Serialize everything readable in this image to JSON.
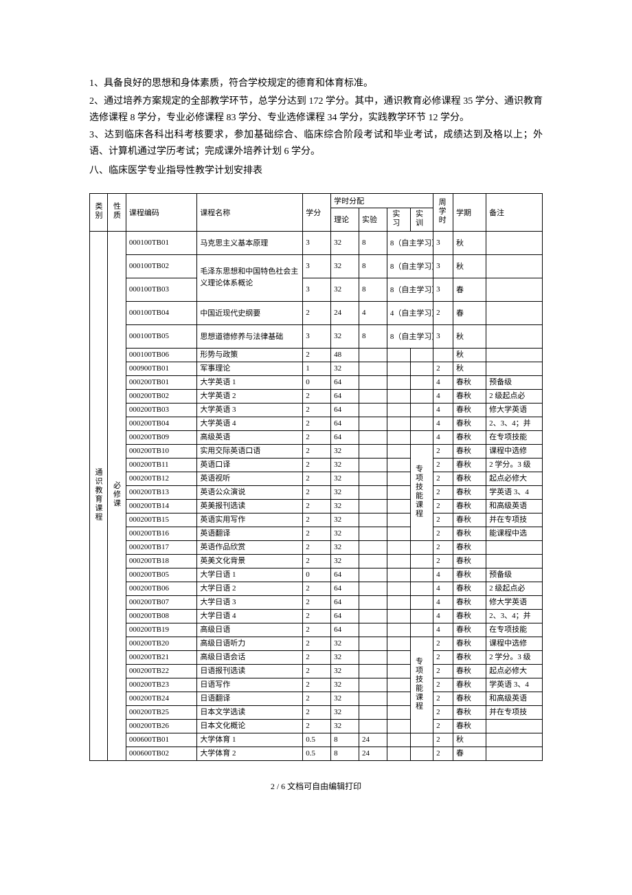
{
  "paragraphs": {
    "p1": "1、具备良好的思想和身体素质，符合学校规定的德育和体育标准。",
    "p2": "2、通过培养方案规定的全部教学环节，总学分达到 172 学分。其中，通识教育必修课程 35 学分、通识教育选修课程 8 学分，专业必修课程 83 学分、专业选修课程 34 学分，实践教学环节 12 学分。",
    "p3": "3、达到临床各科出科考核要求，参加基础综合、临床综合阶段考试和毕业考试，成绩达到及格以上；外语、计算机通过学历考试；完成课外培养计划 6 学分。",
    "s8": "八、临床医学专业指导性教学计划安排表"
  },
  "headers": {
    "category": "类别",
    "nature": "性质",
    "code": "课程编码",
    "name": "课程名称",
    "credit": "学分",
    "hours_alloc": "学时分配",
    "theory": "理论",
    "experiment": "实验",
    "practice": "实习",
    "training": "实训",
    "weekly": "周学时",
    "term": "学期",
    "note": "备注"
  },
  "group": {
    "category": "通识教育课程",
    "nature": "必修课"
  },
  "merged_sx": "8（自主学习）",
  "merged_sx4": "4（自主学习）",
  "brace_en": "专项技能课程",
  "brace_jp": "专项技能课程",
  "rows": [
    {
      "code": "000100TB01",
      "name": "马克思主义基本原理",
      "cr": "3",
      "th": "32",
      "ex": "8",
      "sx": "8（自主学习）",
      "wk": "3",
      "tm": "秋",
      "nt": "",
      "tall": true
    },
    {
      "code": "000100TB02",
      "name": "毛泽东思想和中国特色社",
      "cr": "3",
      "th": "32",
      "ex": "8",
      "sx": "8（自主学习）",
      "wk": "3",
      "tm": "秋",
      "nt": "",
      "tall": true,
      "namerow": 2,
      "name2": "会主义理论体系概论"
    },
    {
      "code": "000100TB03",
      "name": "",
      "cr": "3",
      "th": "32",
      "ex": "8",
      "sx": "8（自主学习）",
      "wk": "3",
      "tm": "春",
      "nt": "",
      "tall": true
    },
    {
      "code": "000100TB04",
      "name": "中国近现代史纲要",
      "cr": "2",
      "th": "24",
      "ex": "4",
      "sx": "4（自主学习）",
      "wk": "2",
      "tm": "春",
      "nt": "",
      "tall": true
    },
    {
      "code": "000100TB05",
      "name": "思想道德修养与法律基础",
      "cr": "3",
      "th": "32",
      "ex": "8",
      "sx": "8（自主学习）",
      "wk": "3",
      "tm": "秋",
      "nt": "",
      "tall": true
    },
    {
      "code": "000100TB06",
      "name": "形势与政策",
      "cr": "2",
      "th": "48",
      "ex": "",
      "pr": "",
      "tr": "",
      "wk": "",
      "tm": "秋",
      "nt": ""
    },
    {
      "code": "000900TB01",
      "name": "军事理论",
      "cr": "1",
      "th": "32",
      "ex": "",
      "pr": "",
      "tr": "",
      "wk": "2",
      "tm": "秋",
      "nt": ""
    },
    {
      "code": "000200TB01",
      "name": "大学英语 1",
      "cr": "0",
      "th": "64",
      "ex": "",
      "pr": "",
      "tr": "",
      "wk": "4",
      "tm": "春秋",
      "nt": "预备级"
    },
    {
      "code": "000200TB02",
      "name": "大学英语 2",
      "cr": "2",
      "th": "64",
      "ex": "",
      "pr": "",
      "tr": "",
      "wk": "4",
      "tm": "春秋",
      "nt": "2 级起点必"
    },
    {
      "code": "000200TB03",
      "name": "大学英语 3",
      "cr": "2",
      "th": "64",
      "ex": "",
      "pr": "",
      "tr": "",
      "wk": "4",
      "tm": "春秋",
      "nt": "修大学英语"
    },
    {
      "code": "000200TB04",
      "name": "大学英语 4",
      "cr": "2",
      "th": "64",
      "ex": "",
      "pr": "",
      "tr": "",
      "wk": "4",
      "tm": "春秋",
      "nt": "2、3、4；并"
    },
    {
      "code": "000200TB09",
      "name": "高级英语",
      "cr": "2",
      "th": "64",
      "ex": "",
      "pr": "",
      "tr": "",
      "wk": "4",
      "tm": "春秋",
      "nt": "在专项技能"
    },
    {
      "code": "000200TB10",
      "name": "实用交际英语口语",
      "cr": "2",
      "th": "32",
      "ex": "",
      "pr": "",
      "tr": "",
      "wk": "2",
      "tm": "春秋",
      "nt": "课程中选修",
      "trspan": 7,
      "trtext": "专项技能课程"
    },
    {
      "code": "000200TB11",
      "name": "英语口译",
      "cr": "2",
      "th": "32",
      "ex": "",
      "pr": "",
      "wk": "2",
      "tm": "春秋",
      "nt": "2 学分。3 级"
    },
    {
      "code": "000200TB12",
      "name": "英语视听",
      "cr": "2",
      "th": "32",
      "ex": "",
      "pr": "",
      "wk": "2",
      "tm": "春秋",
      "nt": "起点必修大"
    },
    {
      "code": "000200TB13",
      "name": "英语公众演说",
      "cr": "2",
      "th": "32",
      "ex": "",
      "pr": "",
      "wk": "2",
      "tm": "春秋",
      "nt": "学英语 3、4"
    },
    {
      "code": "000200TB14",
      "name": "英美报刊选读",
      "cr": "2",
      "th": "32",
      "ex": "",
      "pr": "",
      "wk": "2",
      "tm": "春秋",
      "nt": "和高级英语"
    },
    {
      "code": "000200TB15",
      "name": "英语实用写作",
      "cr": "2",
      "th": "32",
      "ex": "",
      "pr": "",
      "wk": "2",
      "tm": "春秋",
      "nt": "并在专项技"
    },
    {
      "code": "000200TB16",
      "name": "英语翻译",
      "cr": "2",
      "th": "32",
      "ex": "",
      "pr": "",
      "wk": "2",
      "tm": "春秋",
      "nt": "能课程中选"
    },
    {
      "code": "000200TB17",
      "name": "英语作品欣赏",
      "cr": "2",
      "th": "32",
      "ex": "",
      "pr": "",
      "tr": "",
      "wk": "2",
      "tm": "春秋",
      "nt": ""
    },
    {
      "code": "000200TB18",
      "name": "英美文化背景",
      "cr": "2",
      "th": "32",
      "ex": "",
      "pr": "",
      "tr": "",
      "wk": "2",
      "tm": "春秋",
      "nt": ""
    },
    {
      "code": "000200TB05",
      "name": "大学日语 1",
      "cr": "0",
      "th": "64",
      "ex": "",
      "pr": "",
      "tr": "",
      "wk": "4",
      "tm": "春秋",
      "nt": "预备级"
    },
    {
      "code": "000200TB06",
      "name": "大学日语 2",
      "cr": "2",
      "th": "64",
      "ex": "",
      "pr": "",
      "tr": "",
      "wk": "4",
      "tm": "春秋",
      "nt": "2 级起点必"
    },
    {
      "code": "000200TB07",
      "name": "大学日语 3",
      "cr": "2",
      "th": "64",
      "ex": "",
      "pr": "",
      "tr": "",
      "wk": "4",
      "tm": "春秋",
      "nt": "修大学英语"
    },
    {
      "code": "000200TB08",
      "name": "大学日语 4",
      "cr": "2",
      "th": "64",
      "ex": "",
      "pr": "",
      "tr": "",
      "wk": "4",
      "tm": "春秋",
      "nt": "2、3、4；并"
    },
    {
      "code": "000200TB19",
      "name": "高级日语",
      "cr": "2",
      "th": "64",
      "ex": "",
      "pr": "",
      "tr": "",
      "wk": "4",
      "tm": "春秋",
      "nt": "在专项技能"
    },
    {
      "code": "000200TB20",
      "name": "高级日语听力",
      "cr": "2",
      "th": "32",
      "ex": "",
      "pr": "",
      "tr": "",
      "wk": "2",
      "tm": "春秋",
      "nt": "课程中选修",
      "trspan": 7,
      "trtext": "专项技能课程"
    },
    {
      "code": "000200TB21",
      "name": "高级日语会话",
      "cr": "2",
      "th": "32",
      "ex": "",
      "pr": "",
      "wk": "2",
      "tm": "春秋",
      "nt": "2 学分。3 级"
    },
    {
      "code": "000200TB22",
      "name": "日语报刊选读",
      "cr": "2",
      "th": "32",
      "ex": "",
      "pr": "",
      "wk": "2",
      "tm": "春秋",
      "nt": "起点必修大"
    },
    {
      "code": "000200TB23",
      "name": "日语写作",
      "cr": "2",
      "th": "32",
      "ex": "",
      "pr": "",
      "wk": "2",
      "tm": "春秋",
      "nt": "学英语 3、4"
    },
    {
      "code": "000200TB24",
      "name": "日语翻译",
      "cr": "2",
      "th": "32",
      "ex": "",
      "pr": "",
      "wk": "2",
      "tm": "春秋",
      "nt": "和高级英语"
    },
    {
      "code": "000200TB25",
      "name": "日本文学选读",
      "cr": "2",
      "th": "32",
      "ex": "",
      "pr": "",
      "wk": "2",
      "tm": "春秋",
      "nt": "并在专项技"
    },
    {
      "code": "000200TB26",
      "name": "日本文化概论",
      "cr": "2",
      "th": "32",
      "ex": "",
      "pr": "",
      "wk": "2",
      "tm": "春秋",
      "nt": ""
    },
    {
      "code": "000600TB01",
      "name": "大学体育 1",
      "cr": "0.5",
      "th": "8",
      "ex": "24",
      "pr": "",
      "tr": "",
      "wk": "2",
      "tm": "秋",
      "nt": ""
    },
    {
      "code": "000600TB02",
      "name": "大学体育 2",
      "cr": "0.5",
      "th": "8",
      "ex": "24",
      "pr": "",
      "tr": "",
      "wk": "2",
      "tm": "春",
      "nt": ""
    }
  ],
  "notes_en": [
    "预备级",
    "2 级起点必",
    "修大学英语",
    "2、3、4；并",
    "在专项技能",
    "课程中选修",
    "2 学分。3 级",
    "起点必修大",
    "学英语 3、4",
    "和高级英语",
    "并在专项技",
    "能课程中选"
  ],
  "notes_jp": [
    "预备级",
    "2 级起点必",
    "修大学英语",
    "2、3、4；并",
    "在专项技能",
    "课程中选修",
    "2 学分。3 级",
    "起点必修大",
    "学英语 3、4",
    "和高级英语",
    "并在专项技"
  ],
  "footer": "2 / 6 文档可自由编辑打印"
}
